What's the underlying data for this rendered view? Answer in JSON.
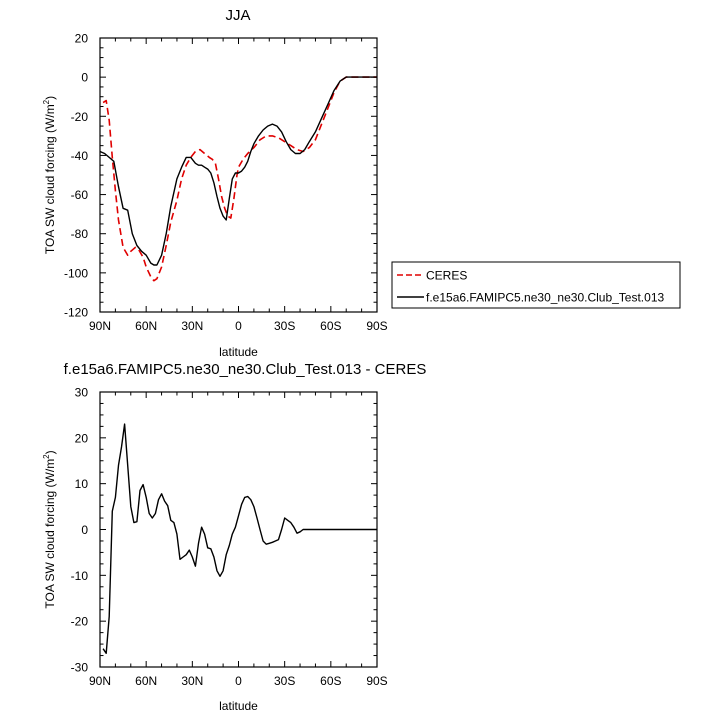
{
  "chart_data": [
    {
      "type": "line",
      "title": "JJA",
      "xlabel": "latitude",
      "ylabel": "TOA SW cloud forcing (W/m",
      "ylabel_sup": "2",
      "ylabel_tail": ")",
      "xlim": [
        90,
        -90
      ],
      "ylim": [
        -120,
        20
      ],
      "x_ticks": [
        90,
        60,
        30,
        0,
        -30,
        -60,
        -90
      ],
      "x_tick_labels": [
        "90N",
        "60N",
        "30N",
        "0",
        "30S",
        "60S",
        "90S"
      ],
      "y_ticks": [
        20,
        0,
        -20,
        -40,
        -60,
        -80,
        -100,
        -120
      ],
      "y_tick_labels": [
        "20",
        "0",
        "-20",
        "-40",
        "-60",
        "-80",
        "-100",
        "-120"
      ],
      "grid": false,
      "legend_placement": "right, outside plot",
      "series": [
        {
          "name": "CERES",
          "color": "#e00000",
          "dash": "dashed",
          "x": [
            88,
            86,
            84,
            82,
            80,
            78,
            75,
            72,
            70,
            67,
            65,
            62,
            60,
            57,
            55,
            53,
            50,
            47,
            44,
            40,
            37,
            34,
            31,
            28,
            25,
            22,
            19,
            17,
            15,
            13,
            11,
            9,
            7,
            5,
            3,
            1,
            0,
            -3,
            -6,
            -10,
            -14,
            -18,
            -22,
            -26,
            -30,
            -34,
            -38,
            -42,
            -46,
            -50,
            -54,
            -58,
            -62,
            -66,
            -70,
            -74,
            -78,
            -82,
            -86,
            -90
          ],
          "y": [
            -13,
            -12,
            -22,
            -41,
            -58,
            -73,
            -87,
            -91,
            -89,
            -87,
            -88,
            -92,
            -97,
            -102,
            -104,
            -103,
            -97,
            -86,
            -74,
            -63,
            -52,
            -45,
            -41,
            -38,
            -37,
            -39,
            -41,
            -42,
            -44,
            -52,
            -61,
            -67,
            -71,
            -72,
            -62,
            -50,
            -46,
            -42,
            -39,
            -36,
            -32,
            -30,
            -30,
            -31,
            -33,
            -35,
            -37,
            -38,
            -36,
            -32,
            -24,
            -16,
            -8,
            -2,
            0,
            0,
            0,
            0,
            0,
            0
          ]
        },
        {
          "name": "f.e15a6.FAMIPC5.ne30_ne30.Club_Test.013",
          "color": "#000000",
          "dash": "solid",
          "x": [
            90,
            87,
            84,
            81,
            78,
            75,
            72,
            69,
            66,
            63,
            60,
            57,
            55,
            53,
            50,
            47,
            44,
            40,
            37,
            34,
            31,
            28,
            26,
            24,
            22,
            20,
            18,
            16,
            14,
            12,
            10,
            8,
            6,
            4,
            2,
            0,
            -2,
            -4,
            -6,
            -8,
            -10,
            -13,
            -16,
            -19,
            -22,
            -25,
            -28,
            -31,
            -34,
            -37,
            -40,
            -43,
            -46,
            -50,
            -54,
            -58,
            -62,
            -66,
            -70,
            -74,
            -78,
            -82,
            -86,
            -90
          ],
          "y": [
            -38,
            -39,
            -41,
            -43,
            -56,
            -67,
            -68,
            -80,
            -86,
            -89,
            -91,
            -95,
            -96,
            -96,
            -91,
            -80,
            -66,
            -52,
            -46,
            -41,
            -41,
            -44,
            -45,
            -45,
            -46,
            -47,
            -49,
            -54,
            -61,
            -67,
            -71,
            -73,
            -62,
            -52,
            -49,
            -49,
            -48,
            -46,
            -43,
            -38,
            -34,
            -30,
            -27,
            -25,
            -24,
            -25,
            -28,
            -33,
            -37,
            -39,
            -39,
            -37,
            -33,
            -28,
            -21,
            -14,
            -7,
            -2,
            0,
            0,
            0,
            0,
            0,
            0
          ]
        }
      ]
    },
    {
      "type": "line",
      "title": "f.e15a6.FAMIPC5.ne30_ne30.Club_Test.013 - CERES",
      "xlabel": "latitude",
      "ylabel": "TOA SW cloud forcing (W/m",
      "ylabel_sup": "2",
      "ylabel_tail": ")",
      "xlim": [
        90,
        -90
      ],
      "ylim": [
        -30,
        30
      ],
      "x_ticks": [
        90,
        60,
        30,
        0,
        -30,
        -60,
        -90
      ],
      "x_tick_labels": [
        "90N",
        "60N",
        "30N",
        "0",
        "30S",
        "60S",
        "90S"
      ],
      "y_ticks": [
        30,
        20,
        10,
        0,
        -10,
        -20,
        -30
      ],
      "y_tick_labels": [
        "30",
        "20",
        "10",
        "0",
        "-10",
        "-20",
        "-30"
      ],
      "grid": false,
      "series": [
        {
          "name": "",
          "color": "#000000",
          "dash": "solid",
          "x": [
            88,
            86,
            84,
            82,
            80,
            78,
            76,
            74,
            72,
            70,
            68,
            66,
            64,
            62,
            60,
            58,
            56,
            54,
            52,
            50,
            48,
            46,
            44,
            42,
            40,
            38,
            36,
            34,
            32,
            30,
            28,
            26,
            24,
            22,
            20,
            18,
            16,
            14,
            12,
            10,
            8,
            6,
            4,
            2,
            0,
            -2,
            -4,
            -6,
            -8,
            -10,
            -12,
            -14,
            -16,
            -18,
            -20,
            -22,
            -24,
            -26,
            -28,
            -30,
            -32,
            -34,
            -36,
            -38,
            -40,
            -42,
            -44,
            -46,
            -48,
            -50,
            -52,
            -54,
            -56,
            -58,
            -60,
            -62,
            -64,
            -66,
            -68,
            -70,
            -72,
            -74,
            -76,
            -78,
            -80,
            -82,
            -84,
            -86,
            -88,
            -90
          ],
          "y": [
            -26,
            -27,
            -19,
            4,
            7,
            14,
            18,
            23,
            14,
            5,
            1.5,
            1.7,
            8.5,
            9.8,
            7,
            3.5,
            2.5,
            3.5,
            6.5,
            7.8,
            6.2,
            5.2,
            2,
            1.5,
            -1,
            -6.5,
            -6,
            -5.5,
            -4.5,
            -6,
            -8,
            -3,
            0.5,
            -1,
            -4,
            -4.2,
            -6,
            -9,
            -10.2,
            -9,
            -5.5,
            -3.5,
            -1,
            0.5,
            3,
            5.5,
            7,
            7.2,
            6.5,
            5,
            2.5,
            0,
            -2.5,
            -3.2,
            -3,
            -2.8,
            -2.5,
            -2.2,
            0,
            2.5,
            2,
            1.5,
            0.5,
            -0.8,
            -0.5,
            0,
            0,
            0,
            0,
            0,
            0,
            0,
            0,
            0,
            0,
            0,
            0,
            0,
            0,
            0,
            0,
            0,
            0,
            0,
            0,
            0,
            0,
            0,
            0,
            0
          ]
        }
      ]
    }
  ]
}
